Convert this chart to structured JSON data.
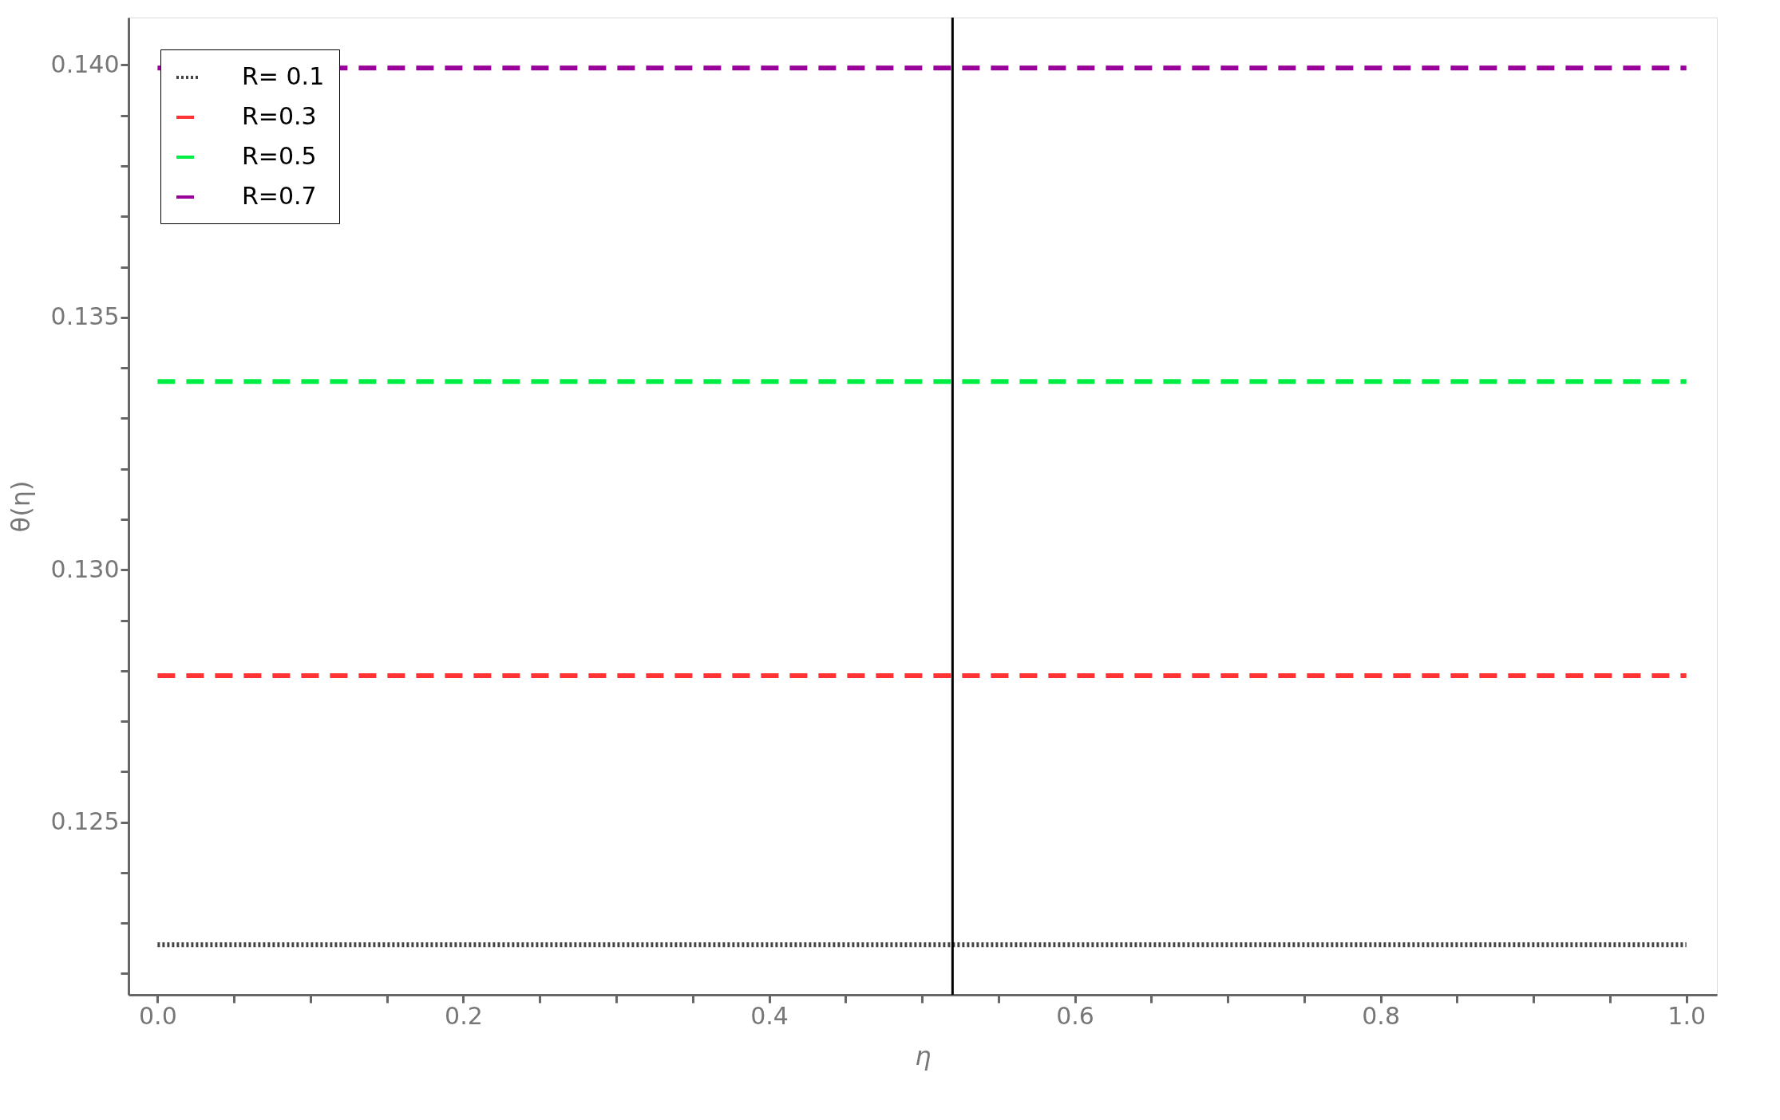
{
  "chart_data": {
    "type": "line",
    "xlabel": "η",
    "ylabel": "θ(η)",
    "x": [
      0,
      1
    ],
    "series": [
      {
        "name": "R= 0.1",
        "color": "#444444",
        "values": [
          0.12257,
          0.12257
        ],
        "line_style": "dotted"
      },
      {
        "name": "R=0.3",
        "color": "#ff3333",
        "values": [
          0.1279,
          0.1279
        ],
        "line_style": "dashed"
      },
      {
        "name": "R=0.5",
        "color": "#00ee44",
        "values": [
          0.13373,
          0.13373
        ],
        "line_style": "dashed"
      },
      {
        "name": "R=0.7",
        "color": "#990099",
        "values": [
          0.13994,
          0.13994
        ],
        "line_style": "dashed"
      }
    ],
    "xlim": [
      -0.019,
      1.02
    ],
    "ylim": [
      0.12158,
      0.14094
    ],
    "xticks": [
      {
        "value": 0,
        "label": "0.0"
      },
      {
        "value": 0.05,
        "label": null
      },
      {
        "value": 0.1,
        "label": null
      },
      {
        "value": 0.15,
        "label": null
      },
      0.2,
      {
        "value": 0.25,
        "label": null
      },
      {
        "value": 0.3,
        "label": null
      },
      {
        "value": 0.35,
        "label": null
      },
      0.4,
      {
        "value": 0.45,
        "label": null
      },
      {
        "value": 0.5,
        "label": null
      },
      {
        "value": 0.55,
        "label": null
      },
      0.6,
      {
        "value": 0.65,
        "label": null
      },
      {
        "value": 0.7,
        "label": null
      },
      {
        "value": 0.75,
        "label": null
      },
      0.8,
      {
        "value": 0.85,
        "label": null
      },
      {
        "value": 0.9,
        "label": null
      },
      {
        "value": 0.95,
        "label": null
      },
      {
        "value": 1,
        "label": "1.0"
      }
    ],
    "yticks": [
      {
        "value": 0.122,
        "label": null
      },
      {
        "value": 0.123,
        "label": null
      },
      {
        "value": 0.124,
        "label": null
      },
      0.125,
      {
        "value": 0.126,
        "label": null
      },
      {
        "value": 0.127,
        "label": null
      },
      {
        "value": 0.128,
        "label": null
      },
      {
        "value": 0.129,
        "label": null
      },
      {
        "value": 0.13,
        "label": "0.130"
      },
      {
        "value": 0.131,
        "label": null
      },
      {
        "value": 0.132,
        "label": null
      },
      {
        "value": 0.133,
        "label": null
      },
      {
        "value": 0.134,
        "label": null
      },
      0.135,
      {
        "value": 0.136,
        "label": null
      },
      {
        "value": 0.137,
        "label": null
      },
      {
        "value": 0.138,
        "label": null
      },
      {
        "value": 0.139,
        "label": null
      },
      {
        "value": 0.14,
        "label": "0.140"
      }
    ],
    "ref_lines": [
      {
        "axis": "x",
        "value": 0.52,
        "color": "#000000",
        "line_style": "solid"
      }
    ],
    "grid": false,
    "legend": "top left",
    "marker": "none"
  }
}
